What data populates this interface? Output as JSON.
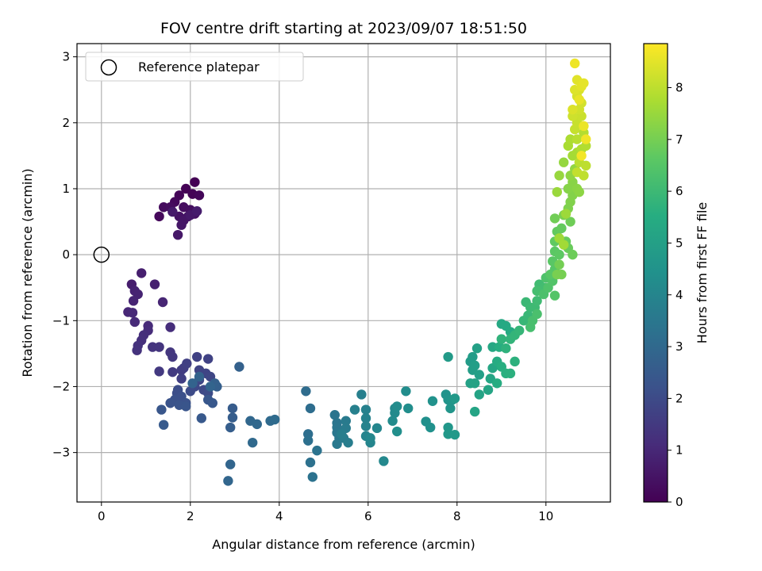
{
  "chart_data": {
    "type": "scatter",
    "title": "FOV centre drift starting at 2023/09/07 18:51:50",
    "xlabel": "Angular distance from reference (arcmin)",
    "ylabel": "Rotation from reference (arcmin)",
    "xlim": [
      -0.55,
      11.45
    ],
    "ylim": [
      -3.75,
      3.2
    ],
    "xticks": [
      0,
      2,
      4,
      6,
      8,
      10
    ],
    "yticks": [
      -3,
      -2,
      -1,
      0,
      1,
      2,
      3
    ],
    "grid": true,
    "legend": {
      "position": "top-left",
      "entries": [
        "Reference platepar"
      ]
    },
    "reference_point": {
      "x": 0,
      "y": 0
    },
    "colorbar": {
      "label": "Hours from first FF file",
      "range": [
        0,
        8.85
      ],
      "ticks": [
        0,
        1,
        2,
        3,
        4,
        5,
        6,
        7,
        8
      ],
      "colormap": "viridis"
    },
    "series": [
      {
        "values": [
          [
            2.1,
            1.1
          ],
          [
            1.9,
            1.0
          ],
          [
            2.05,
            0.92
          ],
          [
            1.75,
            0.9
          ],
          [
            2.2,
            0.9
          ],
          [
            1.65,
            0.8
          ],
          [
            1.3,
            0.58
          ],
          [
            1.4,
            0.72
          ],
          [
            1.55,
            0.72
          ],
          [
            1.85,
            0.72
          ],
          [
            2.0,
            0.68
          ],
          [
            2.1,
            0.62
          ],
          [
            1.75,
            0.58
          ],
          [
            1.95,
            0.58
          ],
          [
            1.85,
            0.52
          ],
          [
            1.8,
            0.45
          ],
          [
            1.72,
            0.3
          ],
          [
            2.0,
            0.6
          ],
          [
            1.6,
            0.65
          ],
          [
            2.15,
            0.66
          ],
          [
            0.68,
            -0.45
          ],
          [
            0.9,
            -0.28
          ],
          [
            1.2,
            -0.45
          ],
          [
            0.75,
            -0.55
          ],
          [
            0.82,
            -0.6
          ],
          [
            0.72,
            -0.7
          ],
          [
            1.38,
            -0.72
          ],
          [
            0.6,
            -0.87
          ],
          [
            0.7,
            -0.88
          ],
          [
            0.75,
            -1.02
          ],
          [
            1.05,
            -1.08
          ],
          [
            1.05,
            -1.15
          ],
          [
            1.55,
            -1.1
          ],
          [
            0.95,
            -1.22
          ],
          [
            0.9,
            -1.3
          ],
          [
            0.82,
            -1.38
          ],
          [
            0.8,
            -1.45
          ],
          [
            1.15,
            -1.4
          ],
          [
            1.3,
            -1.4
          ],
          [
            1.55,
            -1.48
          ],
          [
            1.6,
            -1.55
          ],
          [
            1.3,
            -1.77
          ],
          [
            1.6,
            -1.78
          ],
          [
            1.8,
            -1.75
          ],
          [
            1.85,
            -1.72
          ],
          [
            1.8,
            -1.88
          ],
          [
            1.92,
            -1.65
          ],
          [
            2.15,
            -1.55
          ],
          [
            2.4,
            -1.58
          ],
          [
            2.2,
            -1.75
          ],
          [
            2.35,
            -1.8
          ],
          [
            2.45,
            -1.85
          ],
          [
            2.2,
            -1.9
          ],
          [
            2.1,
            -2.0
          ],
          [
            2.3,
            -2.05
          ],
          [
            2.0,
            -2.07
          ],
          [
            2.4,
            -2.1
          ],
          [
            1.72,
            -2.05
          ],
          [
            1.7,
            -2.1
          ],
          [
            1.8,
            -2.15
          ],
          [
            1.65,
            -2.2
          ],
          [
            1.9,
            -2.25
          ],
          [
            1.55,
            -2.25
          ],
          [
            1.75,
            -2.28
          ],
          [
            1.9,
            -2.3
          ],
          [
            1.35,
            -2.35
          ],
          [
            2.4,
            -2.2
          ],
          [
            2.5,
            -2.25
          ],
          [
            2.25,
            -2.48
          ],
          [
            1.4,
            -2.58
          ],
          [
            2.95,
            -2.33
          ],
          [
            2.95,
            -2.47
          ],
          [
            2.9,
            -2.62
          ],
          [
            2.6,
            -2.0
          ],
          [
            2.55,
            -1.95
          ],
          [
            3.1,
            -1.7
          ],
          [
            2.2,
            -1.85
          ],
          [
            2.05,
            -1.95
          ],
          [
            2.45,
            -2.0
          ],
          [
            2.9,
            -3.18
          ],
          [
            2.85,
            -3.43
          ],
          [
            3.35,
            -2.52
          ],
          [
            3.5,
            -2.57
          ],
          [
            3.4,
            -2.85
          ],
          [
            3.8,
            -2.52
          ],
          [
            3.9,
            -2.5
          ],
          [
            4.6,
            -2.07
          ],
          [
            4.7,
            -2.33
          ],
          [
            4.65,
            -2.72
          ],
          [
            4.65,
            -2.82
          ],
          [
            4.7,
            -3.15
          ],
          [
            4.75,
            -3.37
          ],
          [
            4.85,
            -2.97
          ],
          [
            5.25,
            -2.43
          ],
          [
            5.3,
            -2.55
          ],
          [
            5.3,
            -2.62
          ],
          [
            5.3,
            -2.7
          ],
          [
            5.35,
            -2.78
          ],
          [
            5.3,
            -2.87
          ],
          [
            5.5,
            -2.52
          ],
          [
            5.5,
            -2.63
          ],
          [
            5.45,
            -2.78
          ],
          [
            5.55,
            -2.85
          ],
          [
            5.4,
            -2.72
          ],
          [
            5.85,
            -2.12
          ],
          [
            5.7,
            -2.35
          ],
          [
            5.95,
            -2.35
          ],
          [
            5.95,
            -2.48
          ],
          [
            5.95,
            -2.6
          ],
          [
            5.95,
            -2.75
          ],
          [
            6.05,
            -2.85
          ],
          [
            6.2,
            -2.63
          ],
          [
            6.05,
            -2.78
          ],
          [
            6.35,
            -3.13
          ],
          [
            6.6,
            -2.33
          ],
          [
            6.6,
            -2.4
          ],
          [
            6.55,
            -2.52
          ],
          [
            6.65,
            -2.3
          ],
          [
            6.85,
            -2.07
          ],
          [
            6.9,
            -2.33
          ],
          [
            6.65,
            -2.68
          ],
          [
            7.3,
            -2.53
          ],
          [
            7.4,
            -2.62
          ],
          [
            7.45,
            -2.22
          ],
          [
            7.75,
            -2.12
          ],
          [
            7.8,
            -2.2
          ],
          [
            7.85,
            -2.33
          ],
          [
            7.9,
            -2.2
          ],
          [
            7.8,
            -2.62
          ],
          [
            7.8,
            -2.72
          ],
          [
            7.95,
            -2.73
          ],
          [
            7.95,
            -2.18
          ],
          [
            7.8,
            -1.55
          ],
          [
            8.3,
            -1.62
          ],
          [
            8.35,
            -1.55
          ],
          [
            8.35,
            -1.75
          ],
          [
            8.4,
            -1.68
          ],
          [
            8.5,
            -1.82
          ],
          [
            8.45,
            -1.42
          ],
          [
            8.3,
            -1.95
          ],
          [
            8.4,
            -1.95
          ],
          [
            8.5,
            -2.12
          ],
          [
            8.4,
            -2.38
          ],
          [
            8.7,
            -2.05
          ],
          [
            8.75,
            -1.88
          ],
          [
            8.8,
            -1.72
          ],
          [
            8.8,
            -1.4
          ],
          [
            9.0,
            -1.05
          ],
          [
            9.1,
            -1.08
          ],
          [
            9.2,
            -1.17
          ],
          [
            8.9,
            -1.62
          ],
          [
            8.9,
            -1.95
          ],
          [
            8.95,
            -1.4
          ],
          [
            9.0,
            -1.7
          ],
          [
            9.1,
            -1.8
          ],
          [
            9.2,
            -1.8
          ],
          [
            9.3,
            -1.62
          ],
          [
            9.1,
            -1.42
          ],
          [
            9.0,
            -1.28
          ],
          [
            9.2,
            -1.28
          ],
          [
            9.3,
            -1.22
          ],
          [
            9.4,
            -1.15
          ],
          [
            9.5,
            -1.0
          ],
          [
            9.6,
            -0.92
          ],
          [
            9.55,
            -0.72
          ],
          [
            9.65,
            -0.8
          ],
          [
            9.75,
            -0.8
          ],
          [
            9.8,
            -0.7
          ],
          [
            9.85,
            -0.45
          ],
          [
            9.95,
            -0.5
          ],
          [
            9.8,
            -0.55
          ],
          [
            9.65,
            -1.1
          ],
          [
            9.7,
            -1.0
          ],
          [
            9.8,
            -0.9
          ],
          [
            9.95,
            -0.6
          ],
          [
            10.0,
            -0.35
          ],
          [
            10.05,
            -0.5
          ],
          [
            10.15,
            -0.4
          ],
          [
            10.2,
            -0.62
          ],
          [
            10.2,
            -0.22
          ],
          [
            10.1,
            -0.3
          ],
          [
            10.15,
            -0.1
          ],
          [
            10.2,
            0.05
          ],
          [
            10.3,
            0.0
          ],
          [
            10.2,
            0.2
          ],
          [
            10.25,
            0.35
          ],
          [
            10.35,
            0.4
          ],
          [
            10.45,
            0.2
          ],
          [
            10.5,
            0.1
          ],
          [
            10.6,
            0.0
          ],
          [
            10.55,
            0.5
          ],
          [
            10.2,
            0.55
          ],
          [
            10.3,
            -0.15
          ],
          [
            10.35,
            -0.3
          ],
          [
            10.25,
            -0.3
          ],
          [
            10.4,
            0.6
          ],
          [
            10.5,
            0.7
          ],
          [
            10.55,
            0.8
          ],
          [
            10.6,
            0.9
          ],
          [
            10.5,
            1.0
          ],
          [
            10.6,
            1.1
          ],
          [
            10.7,
            1.0
          ],
          [
            10.75,
            0.95
          ],
          [
            10.55,
            1.2
          ],
          [
            10.65,
            1.3
          ],
          [
            10.4,
            1.4
          ],
          [
            10.3,
            1.2
          ],
          [
            10.25,
            0.95
          ],
          [
            10.45,
            0.62
          ],
          [
            10.3,
            0.25
          ],
          [
            10.4,
            0.15
          ],
          [
            10.6,
            1.5
          ],
          [
            10.7,
            1.55
          ],
          [
            10.5,
            1.65
          ],
          [
            10.55,
            1.75
          ],
          [
            10.8,
            1.6
          ],
          [
            10.9,
            1.65
          ],
          [
            10.85,
            1.85
          ],
          [
            10.7,
            1.75
          ],
          [
            10.75,
            1.4
          ],
          [
            10.9,
            1.35
          ],
          [
            10.85,
            1.2
          ],
          [
            10.7,
            1.25
          ],
          [
            10.65,
            1.9
          ],
          [
            10.7,
            2.0
          ],
          [
            10.8,
            2.1
          ],
          [
            10.6,
            2.1
          ],
          [
            10.75,
            2.2
          ],
          [
            10.8,
            2.3
          ],
          [
            10.7,
            2.4
          ],
          [
            10.75,
            2.5
          ],
          [
            10.6,
            2.2
          ],
          [
            10.65,
            2.5
          ],
          [
            10.7,
            2.65
          ],
          [
            10.8,
            2.55
          ],
          [
            10.85,
            2.6
          ],
          [
            10.75,
            2.35
          ],
          [
            10.85,
            1.95
          ],
          [
            10.65,
            2.9
          ],
          [
            10.9,
            1.75
          ],
          [
            10.8,
            1.5
          ]
        ]
      }
    ]
  }
}
